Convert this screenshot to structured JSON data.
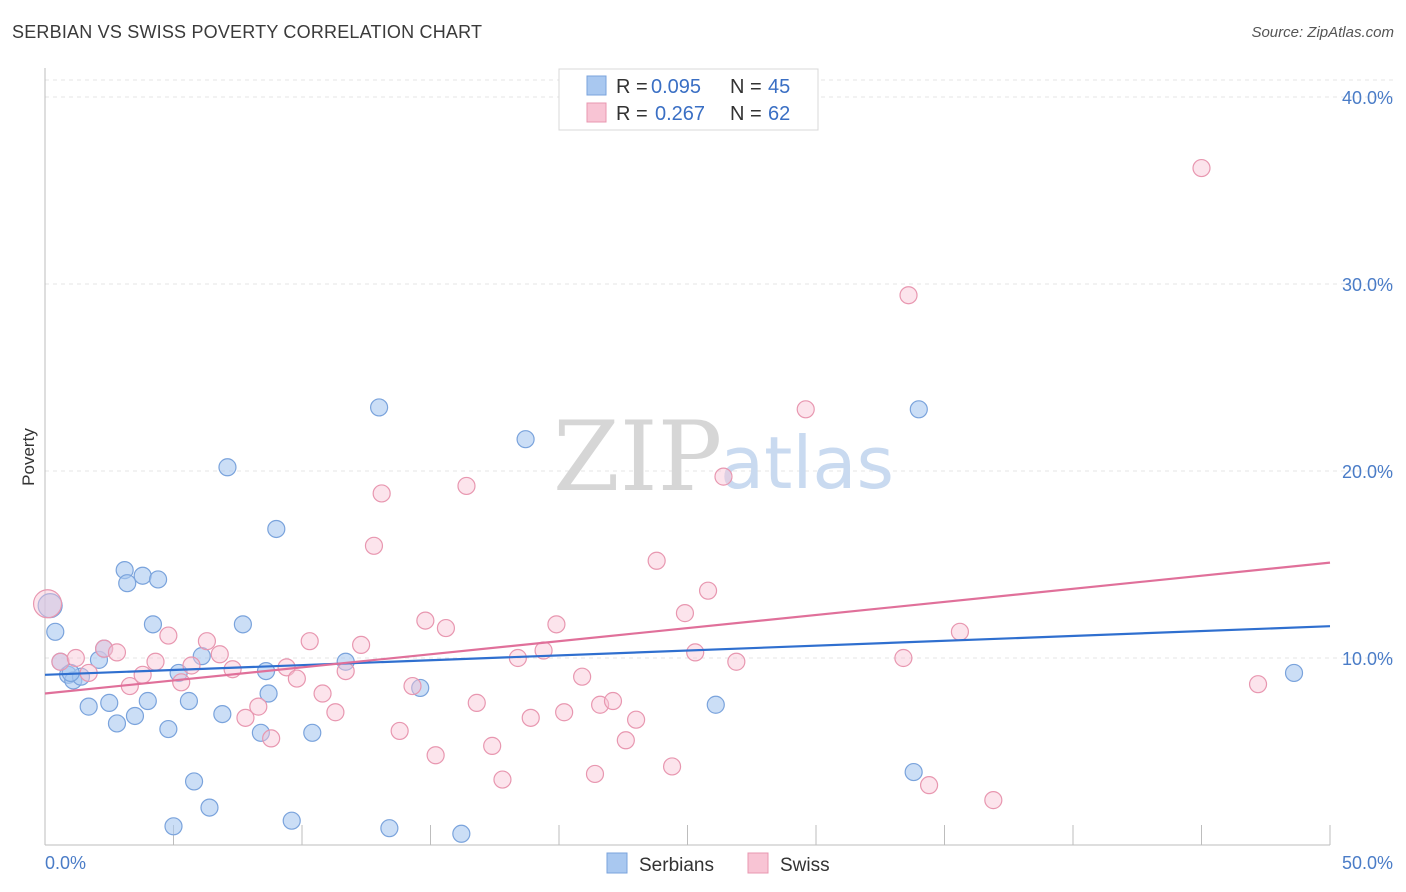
{
  "header": {
    "title": "SERBIAN VS SWISS POVERTY CORRELATION CHART",
    "source": "Source: ZipAtlas.com"
  },
  "watermark": {
    "zip": "ZIP",
    "atlas": "atlas"
  },
  "legend": {
    "rows": [
      {
        "r_label": "R =",
        "r_value": "0.095",
        "n_label": "N =",
        "n_value": "45",
        "color": "#a9c8f0",
        "stroke": "#7aa3dc"
      },
      {
        "r_label": "R =",
        "r_value": "0.267",
        "n_label": "N =",
        "n_value": "62",
        "color": "#f8c4d4",
        "stroke": "#e897b0"
      }
    ]
  },
  "bottom_legend": [
    {
      "label": "Serbians",
      "color": "#a9c8f0",
      "stroke": "#7aa3dc"
    },
    {
      "label": "Swiss",
      "color": "#f8c4d4",
      "stroke": "#e897b0"
    }
  ],
  "chart_data": {
    "type": "scatter",
    "title": "SERBIAN VS SWISS POVERTY CORRELATION CHART",
    "xlabel": "",
    "ylabel": "Poverty",
    "xlim": [
      0,
      50
    ],
    "ylim": [
      0,
      40
    ],
    "x_tick_labels": [
      "0.0%",
      "50.0%"
    ],
    "y_ticks": [
      10,
      20,
      30,
      40
    ],
    "y_tick_labels": [
      "10.0%",
      "20.0%",
      "30.0%",
      "40.0%"
    ],
    "grid": true,
    "legend_position": "top-center",
    "series": [
      {
        "name": "Serbians",
        "color": "#a9c8f0",
        "stroke": "#7aa3dc",
        "line_color": "#2f6fcf",
        "trend": [
          [
            0,
            9.1
          ],
          [
            50,
            11.7
          ]
        ],
        "points": [
          [
            0.2,
            12.8
          ],
          [
            0.4,
            11.4
          ],
          [
            0.6,
            9.8
          ],
          [
            0.9,
            9.1
          ],
          [
            1.1,
            8.8
          ],
          [
            1.4,
            9.0
          ],
          [
            1.7,
            7.4
          ],
          [
            2.1,
            9.9
          ],
          [
            2.3,
            10.5
          ],
          [
            2.5,
            7.6
          ],
          [
            2.8,
            6.5
          ],
          [
            3.1,
            14.7
          ],
          [
            3.2,
            14.0
          ],
          [
            3.5,
            6.9
          ],
          [
            3.8,
            14.4
          ],
          [
            4.0,
            7.7
          ],
          [
            4.2,
            11.8
          ],
          [
            4.4,
            14.2
          ],
          [
            4.8,
            6.2
          ],
          [
            5.2,
            9.2
          ],
          [
            5.6,
            7.7
          ],
          [
            5.8,
            3.4
          ],
          [
            6.1,
            10.1
          ],
          [
            6.4,
            2.0
          ],
          [
            6.9,
            7.0
          ],
          [
            7.1,
            20.2
          ],
          [
            7.7,
            11.8
          ],
          [
            8.4,
            6.0
          ],
          [
            8.6,
            9.3
          ],
          [
            8.7,
            8.1
          ],
          [
            9.0,
            16.9
          ],
          [
            9.6,
            1.3
          ],
          [
            10.4,
            6.0
          ],
          [
            11.7,
            9.8
          ],
          [
            13.0,
            23.4
          ],
          [
            13.4,
            0.9
          ],
          [
            14.6,
            8.4
          ],
          [
            16.2,
            0.6
          ],
          [
            18.7,
            21.7
          ],
          [
            26.1,
            7.5
          ],
          [
            33.8,
            3.9
          ],
          [
            34.0,
            23.3
          ],
          [
            48.6,
            9.2
          ],
          [
            5.0,
            1.0
          ],
          [
            1.0,
            9.2
          ]
        ]
      },
      {
        "name": "Swiss",
        "color": "#f8c4d4",
        "stroke": "#e897b0",
        "line_color": "#e0709a",
        "trend": [
          [
            0,
            8.1
          ],
          [
            50,
            15.1
          ]
        ],
        "points": [
          [
            0.1,
            12.9
          ],
          [
            0.6,
            9.8
          ],
          [
            1.2,
            10.0
          ],
          [
            1.7,
            9.2
          ],
          [
            2.3,
            10.5
          ],
          [
            2.8,
            10.3
          ],
          [
            3.3,
            8.5
          ],
          [
            3.8,
            9.1
          ],
          [
            4.3,
            9.8
          ],
          [
            4.8,
            11.2
          ],
          [
            5.3,
            8.7
          ],
          [
            5.7,
            9.6
          ],
          [
            6.3,
            10.9
          ],
          [
            6.8,
            10.2
          ],
          [
            7.3,
            9.4
          ],
          [
            7.8,
            6.8
          ],
          [
            8.3,
            7.4
          ],
          [
            8.8,
            5.7
          ],
          [
            9.4,
            9.5
          ],
          [
            9.8,
            8.9
          ],
          [
            10.3,
            10.9
          ],
          [
            10.8,
            8.1
          ],
          [
            11.3,
            7.1
          ],
          [
            11.7,
            9.3
          ],
          [
            12.3,
            10.7
          ],
          [
            12.8,
            16.0
          ],
          [
            13.1,
            18.8
          ],
          [
            13.8,
            6.1
          ],
          [
            14.3,
            8.5
          ],
          [
            14.8,
            12.0
          ],
          [
            15.2,
            4.8
          ],
          [
            15.6,
            11.6
          ],
          [
            16.4,
            19.2
          ],
          [
            16.8,
            7.6
          ],
          [
            17.4,
            5.3
          ],
          [
            17.8,
            3.5
          ],
          [
            18.4,
            10.0
          ],
          [
            18.9,
            6.8
          ],
          [
            19.4,
            10.4
          ],
          [
            19.9,
            11.8
          ],
          [
            20.2,
            7.1
          ],
          [
            20.9,
            9.0
          ],
          [
            21.4,
            3.8
          ],
          [
            21.6,
            7.5
          ],
          [
            22.1,
            7.7
          ],
          [
            22.6,
            5.6
          ],
          [
            23.0,
            6.7
          ],
          [
            23.8,
            15.2
          ],
          [
            24.4,
            4.2
          ],
          [
            24.9,
            12.4
          ],
          [
            25.3,
            10.3
          ],
          [
            25.8,
            13.6
          ],
          [
            26.4,
            19.7
          ],
          [
            26.9,
            9.8
          ],
          [
            29.6,
            23.3
          ],
          [
            33.4,
            10.0
          ],
          [
            33.6,
            29.4
          ],
          [
            34.4,
            3.2
          ],
          [
            35.6,
            11.4
          ],
          [
            36.9,
            2.4
          ],
          [
            45.0,
            36.2
          ],
          [
            47.2,
            8.6
          ]
        ]
      }
    ]
  }
}
